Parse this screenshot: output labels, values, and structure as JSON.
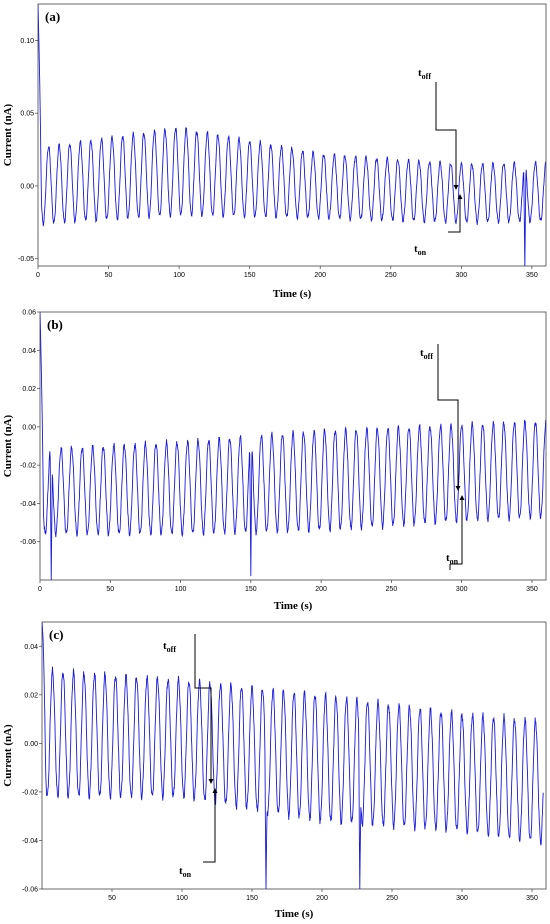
{
  "chart_data": [
    {
      "type": "line",
      "panel_label": "(a)",
      "xlabel": "Time (s)",
      "ylabel": "Current (nA)",
      "xlim": [
        0,
        360
      ],
      "ylim": [
        -0.055,
        0.125
      ],
      "x_ticks": [
        0,
        50,
        100,
        150,
        200,
        250,
        300,
        350
      ],
      "y_ticks": [
        -0.05,
        0.0,
        0.05,
        0.1
      ],
      "y_tick_labels": [
        "-0.05",
        "0.00",
        "0.05",
        "0.10"
      ],
      "series": [
        {
          "description_values": "sinusoidal current oscillation, period ~7.5 s",
          "period_s": 7.5,
          "start_s": 0,
          "end_s": 360,
          "initial_spike_peak": 0.125,
          "baseline": [
            [
              0,
              0.0
            ],
            [
              100,
              0.01
            ],
            [
              200,
              0.0
            ],
            [
              300,
              -0.005
            ],
            [
              360,
              -0.004
            ]
          ],
          "amplitude": [
            [
              0,
              0.026
            ],
            [
              100,
              0.03
            ],
            [
              200,
              0.022
            ],
            [
              300,
              0.02
            ],
            [
              360,
              0.02
            ]
          ],
          "glitches": [
            [
              345,
              -0.056
            ]
          ]
        }
      ],
      "annotations": {
        "t_off": {
          "text": "t",
          "sub": "off",
          "time_s": 296
        },
        "t_on": {
          "text": "t",
          "sub": "on",
          "time_s": 298
        }
      }
    },
    {
      "type": "line",
      "panel_label": "(b)",
      "xlabel": "Time (s)",
      "ylabel": "Current (nA)",
      "xlim": [
        0,
        360
      ],
      "ylim": [
        -0.08,
        0.06
      ],
      "x_ticks": [
        0,
        50,
        100,
        150,
        200,
        250,
        300,
        350
      ],
      "y_ticks": [
        -0.06,
        -0.04,
        -0.02,
        0.0,
        0.02,
        0.04,
        0.06
      ],
      "y_tick_labels": [
        "-0.06",
        "-0.04",
        "-0.02",
        "0.00",
        "0.02",
        "0.04",
        "0.06"
      ],
      "series": [
        {
          "description_values": "sinusoidal current oscillation, period ~7.5 s",
          "period_s": 7.5,
          "start_s": 0,
          "end_s": 360,
          "initial_spike_peak": 0.06,
          "baseline": [
            [
              0,
              -0.034
            ],
            [
              100,
              -0.032
            ],
            [
              200,
              -0.028
            ],
            [
              300,
              -0.024
            ],
            [
              360,
              -0.022
            ]
          ],
          "amplitude": [
            [
              0,
              0.022
            ],
            [
              100,
              0.024
            ],
            [
              200,
              0.026
            ],
            [
              300,
              0.025
            ],
            [
              360,
              0.025
            ]
          ],
          "glitches": [
            [
              8,
              -0.08
            ],
            [
              150,
              -0.078
            ]
          ]
        }
      ],
      "annotations": {
        "t_off": {
          "text": "t",
          "sub": "off",
          "time_s": 296
        },
        "t_on": {
          "text": "t",
          "sub": "on",
          "time_s": 298
        }
      }
    },
    {
      "type": "line",
      "panel_label": "(c)",
      "xlabel": "Time (s)",
      "ylabel": "Current (nA)",
      "xlim": [
        0,
        360
      ],
      "ylim": [
        -0.06,
        0.05
      ],
      "x_ticks": [
        50,
        100,
        150,
        200,
        250,
        300,
        350
      ],
      "y_ticks": [
        -0.06,
        -0.04,
        -0.02,
        0.0,
        0.02,
        0.04
      ],
      "y_tick_labels": [
        "-0.06",
        "-0.04",
        "-0.02",
        "0.00",
        "0.02",
        "0.04"
      ],
      "series": [
        {
          "description_values": "sinusoidal current oscillation, period ~7.5 s",
          "period_s": 7.5,
          "start_s": 0,
          "end_s": 358,
          "initial_spike_peak": 0.05,
          "baseline": [
            [
              0,
              0.004
            ],
            [
              100,
              0.002
            ],
            [
              200,
              -0.006
            ],
            [
              300,
              -0.012
            ],
            [
              358,
              -0.016
            ]
          ],
          "amplitude": [
            [
              0,
              0.026
            ],
            [
              100,
              0.024
            ],
            [
              200,
              0.026
            ],
            [
              300,
              0.024
            ],
            [
              358,
              0.025
            ]
          ],
          "glitches": [
            [
              160,
              -0.06
            ],
            [
              227,
              -0.06
            ]
          ]
        }
      ],
      "annotations": {
        "t_off": {
          "text": "t",
          "sub": "off",
          "time_s": 125
        },
        "t_on": {
          "text": "t",
          "sub": "on",
          "time_s": 127
        }
      }
    }
  ]
}
